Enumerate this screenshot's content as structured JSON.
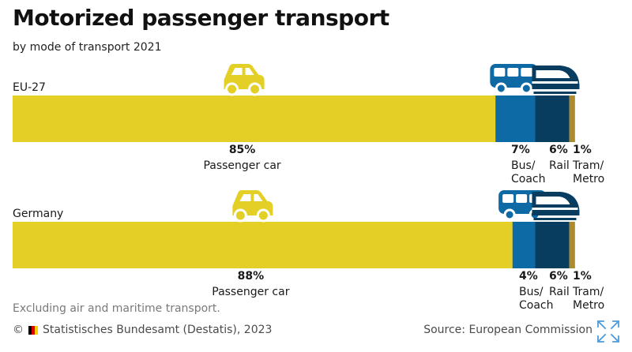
{
  "header": {
    "title": "Motorized passenger transport",
    "subtitle": "by mode of transport 2021"
  },
  "chart_data": {
    "type": "bar",
    "orientation": "horizontal-stacked",
    "title": "Motorized passenger transport",
    "subtitle": "by mode of transport 2021",
    "unit": "%",
    "categories": [
      "EU-27",
      "Germany"
    ],
    "series": [
      {
        "name": "Passenger car",
        "label_lines": [
          "Passenger car"
        ],
        "color": "#e3cf26",
        "icon": "car-icon",
        "values": [
          85,
          88
        ]
      },
      {
        "name": "Bus/Coach",
        "label_lines": [
          "Bus/",
          "Coach"
        ],
        "color": "#0e6aa4",
        "icon": "bus-icon",
        "values": [
          7,
          4
        ]
      },
      {
        "name": "Rail",
        "label_lines": [
          "Rail"
        ],
        "color": "#083d60",
        "icon": "train-icon",
        "values": [
          6,
          6
        ]
      },
      {
        "name": "Tram/Metro",
        "label_lines": [
          "Tram/",
          "Metro"
        ],
        "color": "#ad8b2a",
        "icon": "",
        "values": [
          1,
          1
        ]
      }
    ],
    "icon_color_car": "#e3cf26",
    "icon_color_transit": "#0e6aa4",
    "icon_color_rail": "#083d60"
  },
  "note": "Excluding air and maritime transport.",
  "footer": {
    "copyright": "©",
    "publisher": "Statistisches Bundesamt (Destatis), 2023",
    "source": "Source: European Commission",
    "flag_colors": [
      "#000000",
      "#dd0000",
      "#ffce00"
    ],
    "expand_icon": "expand-arrows-icon"
  }
}
